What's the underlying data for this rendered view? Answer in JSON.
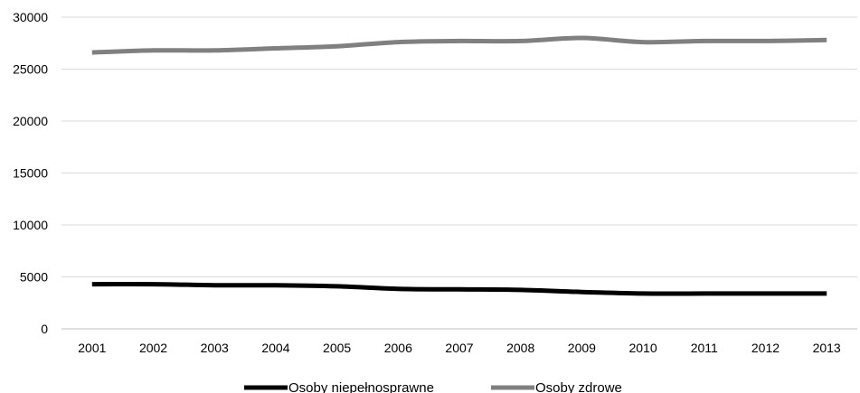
{
  "chart_data": {
    "type": "line",
    "title": "",
    "xlabel": "",
    "ylabel": "",
    "x": [
      "2001",
      "2002",
      "2003",
      "2004",
      "2005",
      "2006",
      "2007",
      "2008",
      "2009",
      "2010",
      "2011",
      "2012",
      "2013"
    ],
    "ylim": [
      0,
      30000
    ],
    "yticks": [
      0,
      5000,
      10000,
      15000,
      20000,
      25000,
      30000
    ],
    "grid": true,
    "legend_position": "bottom",
    "series": [
      {
        "name": "Osoby niepełnosprawne",
        "color": "#000000",
        "values": [
          4300,
          4300,
          4200,
          4200,
          4100,
          3850,
          3800,
          3750,
          3550,
          3400,
          3400,
          3400,
          3400
        ]
      },
      {
        "name": "Osoby zdrowe",
        "color": "#808080",
        "values": [
          26600,
          26800,
          26800,
          27000,
          27200,
          27600,
          27700,
          27700,
          28000,
          27600,
          27700,
          27700,
          27800
        ]
      }
    ]
  }
}
